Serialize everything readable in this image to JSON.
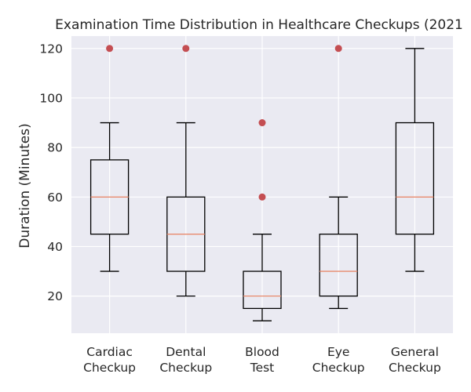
{
  "chart_data": {
    "type": "boxplot",
    "title": "Examination Time Distribution in Healthcare Checkups (2021",
    "xlabel": "",
    "ylabel": "Duration (Minutes)",
    "ylim": [
      5,
      125
    ],
    "yticks": [
      20,
      40,
      60,
      80,
      100,
      120
    ],
    "grid": true,
    "style": {
      "background": "#eaeaf2",
      "grid_color": "#ffffff",
      "box_color": "#000000",
      "median_color": "#e8896c",
      "outlier_color": "#c44e52"
    },
    "categories": [
      {
        "lines": [
          "Cardiac",
          "Checkup"
        ],
        "whisker_low": 30,
        "q1": 45,
        "median": 60,
        "q3": 75,
        "whisker_high": 90,
        "outliers": [
          120
        ]
      },
      {
        "lines": [
          "Dental",
          "Checkup"
        ],
        "whisker_low": 20,
        "q1": 30,
        "median": 45,
        "q3": 60,
        "whisker_high": 90,
        "outliers": [
          120
        ]
      },
      {
        "lines": [
          "Blood",
          "Test"
        ],
        "whisker_low": 10,
        "q1": 15,
        "median": 20,
        "q3": 30,
        "whisker_high": 45,
        "outliers": [
          60,
          90
        ]
      },
      {
        "lines": [
          "Eye",
          "Checkup"
        ],
        "whisker_low": 15,
        "q1": 20,
        "median": 30,
        "q3": 45,
        "whisker_high": 60,
        "outliers": [
          120
        ]
      },
      {
        "lines": [
          "General",
          "Checkup"
        ],
        "whisker_low": 30,
        "q1": 45,
        "median": 60,
        "q3": 90,
        "whisker_high": 120,
        "outliers": []
      }
    ]
  }
}
